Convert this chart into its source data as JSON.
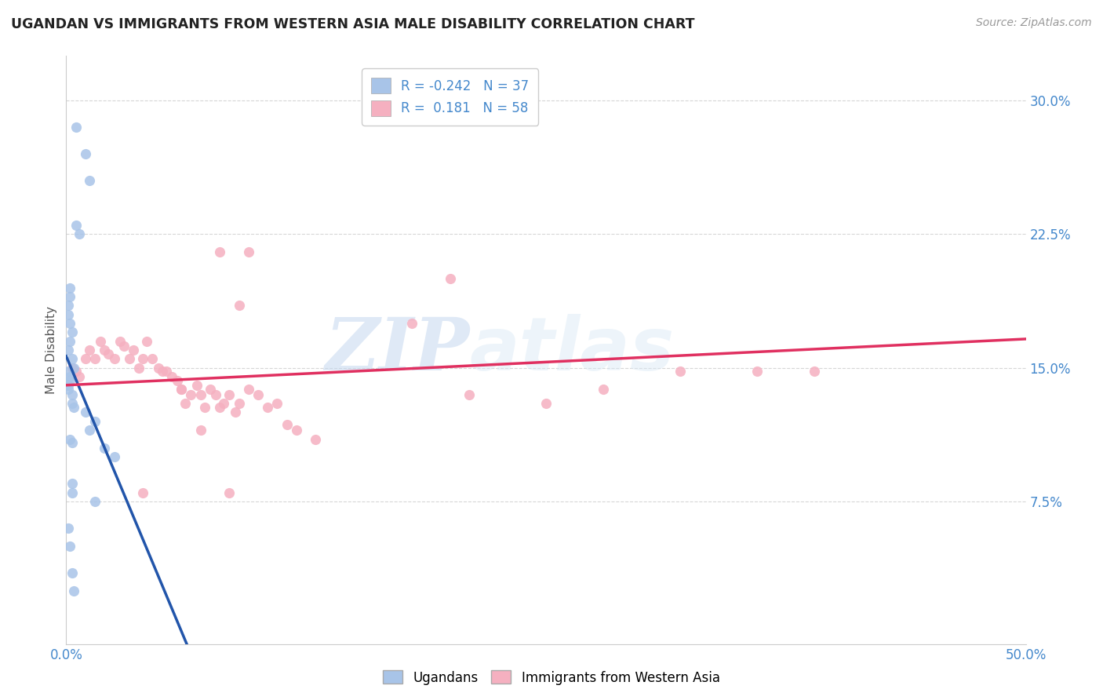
{
  "title": "UGANDAN VS IMMIGRANTS FROM WESTERN ASIA MALE DISABILITY CORRELATION CHART",
  "source": "Source: ZipAtlas.com",
  "ylabel": "Male Disability",
  "xlim": [
    0.0,
    0.5
  ],
  "ylim": [
    -0.005,
    0.325
  ],
  "yticks": [
    0.075,
    0.15,
    0.225,
    0.3
  ],
  "ytick_labels": [
    "7.5%",
    "15.0%",
    "22.5%",
    "30.0%"
  ],
  "xticks": [
    0.0,
    0.1,
    0.2,
    0.3,
    0.4,
    0.5
  ],
  "xtick_labels": [
    "0.0%",
    "",
    "",
    "",
    "",
    "50.0%"
  ],
  "ugandan_color": "#a8c4e8",
  "immigrant_color": "#f5b0c0",
  "ugandan_line_color": "#2255aa",
  "immigrant_line_color": "#e03060",
  "r_ugandan": -0.242,
  "n_ugandan": 37,
  "r_immigrant": 0.181,
  "n_immigrant": 58,
  "legend_entries": [
    "Ugandans",
    "Immigrants from Western Asia"
  ],
  "watermark_zip": "ZIP",
  "watermark_atlas": "atlas",
  "ugandan_x": [
    0.005,
    0.01,
    0.012,
    0.005,
    0.007,
    0.002,
    0.002,
    0.001,
    0.001,
    0.002,
    0.003,
    0.002,
    0.001,
    0.003,
    0.004,
    0.001,
    0.002,
    0.002,
    0.001,
    0.001,
    0.003,
    0.003,
    0.004,
    0.01,
    0.015,
    0.012,
    0.002,
    0.003,
    0.02,
    0.025,
    0.003,
    0.003,
    0.015,
    0.001,
    0.002,
    0.003,
    0.004
  ],
  "ugandan_y": [
    0.285,
    0.27,
    0.255,
    0.23,
    0.225,
    0.195,
    0.19,
    0.185,
    0.18,
    0.175,
    0.17,
    0.165,
    0.16,
    0.155,
    0.15,
    0.148,
    0.145,
    0.143,
    0.14,
    0.138,
    0.135,
    0.13,
    0.128,
    0.125,
    0.12,
    0.115,
    0.11,
    0.108,
    0.105,
    0.1,
    0.085,
    0.08,
    0.075,
    0.06,
    0.05,
    0.035,
    0.025
  ],
  "immigrant_x": [
    0.003,
    0.005,
    0.007,
    0.01,
    0.012,
    0.015,
    0.018,
    0.02,
    0.022,
    0.025,
    0.028,
    0.03,
    0.033,
    0.035,
    0.038,
    0.04,
    0.042,
    0.045,
    0.048,
    0.05,
    0.052,
    0.055,
    0.058,
    0.06,
    0.062,
    0.065,
    0.068,
    0.07,
    0.072,
    0.075,
    0.078,
    0.08,
    0.082,
    0.085,
    0.088,
    0.09,
    0.095,
    0.1,
    0.105,
    0.11,
    0.115,
    0.12,
    0.13,
    0.08,
    0.09,
    0.095,
    0.18,
    0.2,
    0.21,
    0.25,
    0.28,
    0.32,
    0.36,
    0.39,
    0.04,
    0.06,
    0.07,
    0.085
  ],
  "immigrant_y": [
    0.15,
    0.148,
    0.145,
    0.155,
    0.16,
    0.155,
    0.165,
    0.16,
    0.158,
    0.155,
    0.165,
    0.162,
    0.155,
    0.16,
    0.15,
    0.155,
    0.165,
    0.155,
    0.15,
    0.148,
    0.148,
    0.145,
    0.143,
    0.138,
    0.13,
    0.135,
    0.14,
    0.135,
    0.128,
    0.138,
    0.135,
    0.128,
    0.13,
    0.135,
    0.125,
    0.13,
    0.138,
    0.135,
    0.128,
    0.13,
    0.118,
    0.115,
    0.11,
    0.215,
    0.185,
    0.215,
    0.175,
    0.2,
    0.135,
    0.13,
    0.138,
    0.148,
    0.148,
    0.148,
    0.08,
    0.138,
    0.115,
    0.08
  ]
}
